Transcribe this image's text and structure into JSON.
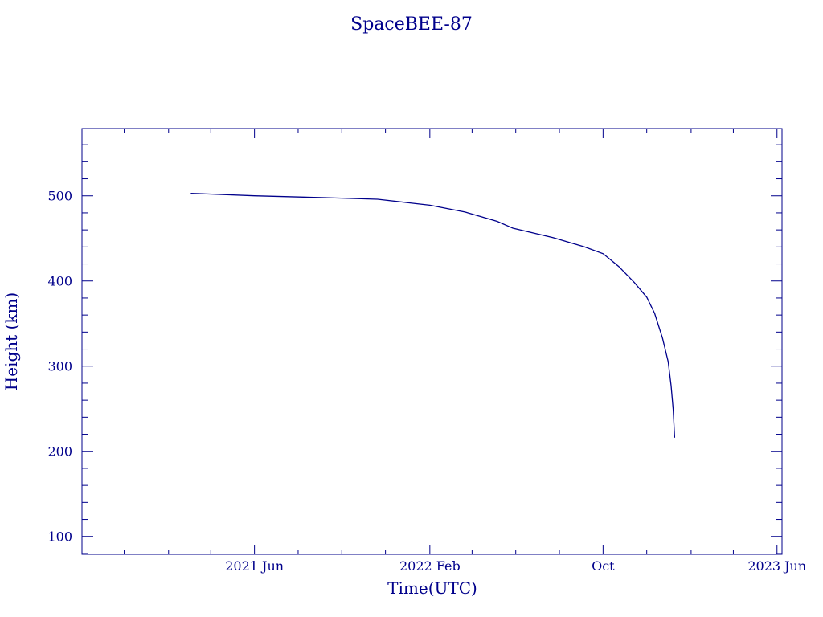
{
  "chart_data": {
    "type": "line",
    "title": "SpaceBEE-87",
    "xlabel": "Time(UTC)",
    "ylabel": "Height (km)",
    "xlim": [
      "2020-10-03",
      "2023-06-08"
    ],
    "ylim": [
      79,
      579
    ],
    "grid": false,
    "color": "#00008b",
    "x_ticks": [
      {
        "date": "2021-06-01",
        "label": "2021 Jun"
      },
      {
        "date": "2022-02-01",
        "label": "2022 Feb"
      },
      {
        "date": "2022-10-01",
        "label": "Oct"
      },
      {
        "date": "2023-06-01",
        "label": "2023 Jun"
      }
    ],
    "x_minor_ticks": [
      "2020-12-01",
      "2021-02-01",
      "2021-04-01",
      "2021-08-01",
      "2021-10-01",
      "2021-12-01",
      "2022-04-01",
      "2022-06-01",
      "2022-08-01",
      "2022-12-01",
      "2023-02-01",
      "2023-04-01"
    ],
    "y_ticks": [
      100,
      200,
      300,
      400,
      500
    ],
    "y_minor_step": 20,
    "series": [
      {
        "x": [
          "2021-03-04",
          "2021-06-01",
          "2021-09-03",
          "2021-11-20",
          "2022-02-01",
          "2022-03-22",
          "2022-05-06",
          "2022-05-28",
          "2022-07-23",
          "2022-09-05",
          "2022-10-01",
          "2022-10-23",
          "2022-11-14",
          "2022-12-01",
          "2022-12-12",
          "2022-12-23",
          "2022-12-31",
          "2023-01-04",
          "2023-01-07",
          "2023-01-09"
        ],
        "y": [
          503,
          500,
          498,
          496,
          489,
          481,
          470,
          462,
          451,
          440,
          432,
          417,
          398,
          381,
          362,
          333,
          305,
          277,
          249,
          216
        ]
      }
    ]
  }
}
